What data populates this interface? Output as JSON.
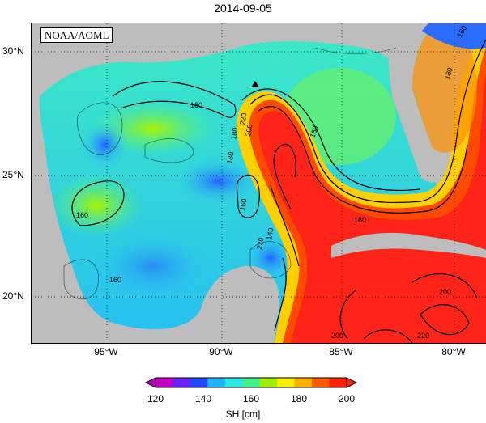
{
  "title": "2014-09-05",
  "source_label": "NOAA/AOML",
  "lat_labels": [
    "30°N",
    "25°N",
    "20°N"
  ],
  "lon_labels": [
    "95°W",
    "90°W",
    "85°W",
    "80°W"
  ],
  "colorbar": {
    "ticks": [
      "120",
      "140",
      "160",
      "180",
      "200"
    ],
    "title": "SH [cm]",
    "colors": [
      "#c000c0",
      "#6a22ff",
      "#1f48ff",
      "#23b4ff",
      "#2fe6e6",
      "#44f08c",
      "#9cf000",
      "#ffee00",
      "#ffb000",
      "#ff5a00",
      "#ff2200"
    ]
  },
  "contour_labels": [
    "160",
    "160",
    "160",
    "160",
    "160",
    "180",
    "180",
    "180",
    "180",
    "200",
    "200",
    "200",
    "220",
    "220",
    "220",
    "140",
    "160"
  ],
  "colors": {
    "land": "#bdbdbd",
    "high": "#ff2a1a",
    "mid_high": "#ffa000",
    "mid": "#b8f000",
    "low": "#2ec8f0",
    "lowest": "#2364ff"
  },
  "icons": [
    "triangle-marker-icon"
  ]
}
